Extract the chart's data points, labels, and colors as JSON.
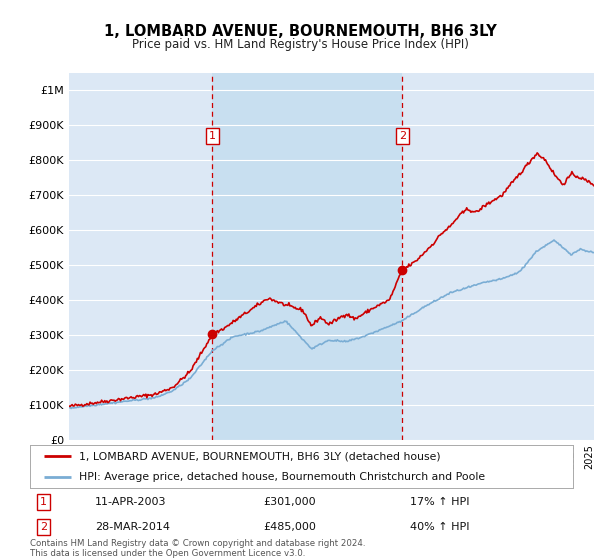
{
  "title": "1, LOMBARD AVENUE, BOURNEMOUTH, BH6 3LY",
  "subtitle": "Price paid vs. HM Land Registry's House Price Index (HPI)",
  "ylim": [
    0,
    1050000
  ],
  "yticks": [
    0,
    100000,
    200000,
    300000,
    400000,
    500000,
    600000,
    700000,
    800000,
    900000,
    1000000
  ],
  "ytick_labels": [
    "£0",
    "£100K",
    "£200K",
    "£300K",
    "£400K",
    "£500K",
    "£600K",
    "£700K",
    "£800K",
    "£900K",
    "£1M"
  ],
  "sale1_date": 2003.27,
  "sale1_price": 301000,
  "sale1_label": "11-APR-2003",
  "sale1_amount": "£301,000",
  "sale1_hpi": "17% ↑ HPI",
  "sale2_date": 2014.23,
  "sale2_price": 485000,
  "sale2_label": "28-MAR-2014",
  "sale2_amount": "£485,000",
  "sale2_hpi": "40% ↑ HPI",
  "legend_property": "1, LOMBARD AVENUE, BOURNEMOUTH, BH6 3LY (detached house)",
  "legend_hpi": "HPI: Average price, detached house, Bournemouth Christchurch and Poole",
  "footer": "Contains HM Land Registry data © Crown copyright and database right 2024.\nThis data is licensed under the Open Government Licence v3.0.",
  "line_color_property": "#cc0000",
  "line_color_hpi": "#7aadd4",
  "background_color": "#dce8f5",
  "highlight_color": "#c8dff0",
  "grid_color": "#ffffff",
  "title_fontsize": 11,
  "subtitle_fontsize": 9
}
